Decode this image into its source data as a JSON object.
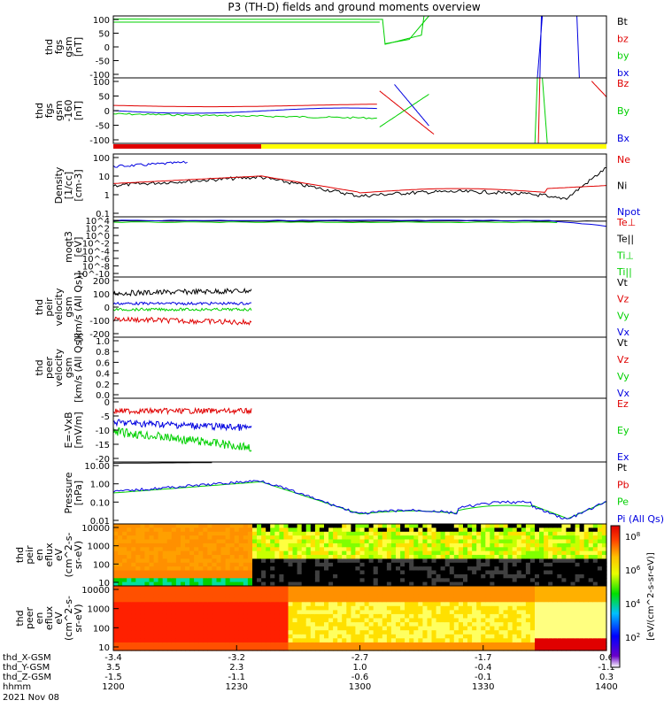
{
  "title": "P3 (TH-D) fields and ground moments overview",
  "date_label": "2021 Nov 08",
  "colorbar_label": "[eV/(cm^2-s-sr-eV)]",
  "colorbar_ticks": [
    "10^8",
    "10^6",
    "10^4",
    "10^2"
  ],
  "colors": {
    "black": "#000000",
    "red": "#e00000",
    "green": "#00d000",
    "blue": "#0000e0",
    "yellow": "#ffff00"
  },
  "chart_data": [
    {
      "type": "line",
      "id": "fgs",
      "ylabel": [
        "thd",
        "fgs",
        "gsm",
        "[nT]"
      ],
      "yticks": [
        "100",
        "50",
        "0",
        "-50",
        "-100"
      ],
      "ylim": [
        -100,
        105
      ],
      "legend": [
        {
          "name": "Bt",
          "color": "black"
        },
        {
          "name": "bz",
          "color": "red"
        },
        {
          "name": "by",
          "color": "green"
        },
        {
          "name": "bx",
          "color": "blue"
        }
      ]
    },
    {
      "type": "line",
      "id": "fgl",
      "ylabel": [
        "thd",
        "fgs",
        "gsm",
        "-160",
        "[nT]"
      ],
      "yticks": [
        "100",
        "50",
        "0",
        "-50",
        "-100"
      ],
      "ylim": [
        -125,
        120
      ],
      "legend": [
        {
          "name": "Bz",
          "color": "red"
        },
        {
          "name": "By",
          "color": "green"
        },
        {
          "name": "Bx",
          "color": "blue"
        }
      ]
    },
    {
      "type": "line",
      "id": "density",
      "ylabel": [
        "Density",
        "[1/cc]",
        "[cm-3]"
      ],
      "yticks": [
        "100",
        "10",
        "1",
        "0.1"
      ],
      "ylim": [
        0.05,
        200
      ],
      "log": true,
      "legend": [
        {
          "name": "Ne",
          "color": "red"
        },
        {
          "name": "Ni",
          "color": "black"
        },
        {
          "name": "Npot",
          "color": "blue"
        }
      ]
    },
    {
      "type": "line",
      "id": "temperature",
      "ylabel": [
        "moqt3",
        "[eV]"
      ],
      "yticks": [
        "10^4",
        "10^2",
        "10^0",
        "10^-2",
        "10^-4",
        "10^-6",
        "10^-8",
        "10^-10"
      ],
      "ylim": [
        1e-11,
        100000.0
      ],
      "log": true,
      "legend": [
        {
          "name": "Te⊥",
          "color": "red"
        },
        {
          "name": "Te||",
          "color": "black"
        },
        {
          "name": "Ti⊥",
          "color": "green"
        },
        {
          "name": "Ti||",
          "color": "green"
        }
      ]
    },
    {
      "type": "line",
      "id": "peir_velocity",
      "ylabel": [
        "thd",
        "peir",
        "velocity",
        "gsm",
        "[km/s (All Qs)]"
      ],
      "yticks": [
        "200",
        "100",
        "0",
        "-100",
        "-200"
      ],
      "ylim": [
        -210,
        220
      ],
      "legend": [
        {
          "name": "Vt",
          "color": "black"
        },
        {
          "name": "Vz",
          "color": "red"
        },
        {
          "name": "Vy",
          "color": "green"
        },
        {
          "name": "Vx",
          "color": "blue"
        }
      ]
    },
    {
      "type": "line",
      "id": "peer_velocity",
      "ylabel": [
        "thd",
        "peer",
        "velocity",
        "gsm",
        "[km/s (All Qs)]"
      ],
      "yticks": [
        "1.0",
        "0.8",
        "0.6",
        "0.4",
        "0.2",
        "0.0"
      ],
      "ylim": [
        0,
        1.0
      ],
      "legend": [
        {
          "name": "Vt",
          "color": "black"
        },
        {
          "name": "Vz",
          "color": "red"
        },
        {
          "name": "Vy",
          "color": "green"
        },
        {
          "name": "Vx",
          "color": "blue"
        }
      ]
    },
    {
      "type": "line",
      "id": "efield",
      "ylabel": [
        "E=-VxB",
        "[mV/m]"
      ],
      "yticks": [
        "0",
        "-5",
        "-10",
        "-15",
        "-20"
      ],
      "ylim": [
        -22,
        3
      ],
      "legend": [
        {
          "name": "Ez",
          "color": "red"
        },
        {
          "name": "Ey",
          "color": "green"
        },
        {
          "name": "Ex",
          "color": "blue"
        }
      ]
    },
    {
      "type": "line",
      "id": "pressure",
      "ylabel": [
        "Pressure",
        "[nPa]"
      ],
      "yticks": [
        "10.00",
        "1.00",
        "0.10",
        "0.01"
      ],
      "ylim": [
        0.01,
        30
      ],
      "log": true,
      "legend": [
        {
          "name": "Pt",
          "color": "black"
        },
        {
          "name": "Pb",
          "color": "red"
        },
        {
          "name": "Pe",
          "color": "green"
        },
        {
          "name": "Pi (All Qs)",
          "color": "blue"
        }
      ]
    },
    {
      "type": "heatmap",
      "id": "peir_spec",
      "ylabel": [
        "thd",
        "peir",
        "en",
        "eflux",
        "eV",
        "(cm^2-s-",
        "sr-eV)"
      ],
      "yticks": [
        "10000",
        "1000",
        "100",
        "10"
      ]
    },
    {
      "type": "heatmap",
      "id": "peer_spec",
      "ylabel": [
        "thd",
        "peer",
        "en",
        "eflux",
        "eV",
        "(cm^2-s-",
        "sr-eV)"
      ],
      "yticks": [
        "10000",
        "1000",
        "100",
        "10"
      ]
    }
  ],
  "x_axis": {
    "row_labels": [
      "thd_X-GSM",
      "thd_Y-GSM",
      "thd_Z-GSM",
      "hhmm"
    ],
    "ticks": [
      {
        "x": "-3.4",
        "y": "3.5",
        "z": "-1.5",
        "t": "1200"
      },
      {
        "x": "-3.2",
        "y": "2.3",
        "z": "-1.1",
        "t": "1230"
      },
      {
        "x": "-2.7",
        "y": "1.0",
        "z": "-0.6",
        "t": "1300"
      },
      {
        "x": "-1.7",
        "y": "-0.4",
        "z": "-0.1",
        "t": "1330"
      },
      {
        "x": "0.6",
        "y": "-1.1",
        "z": "0.3",
        "t": "1400"
      }
    ]
  }
}
